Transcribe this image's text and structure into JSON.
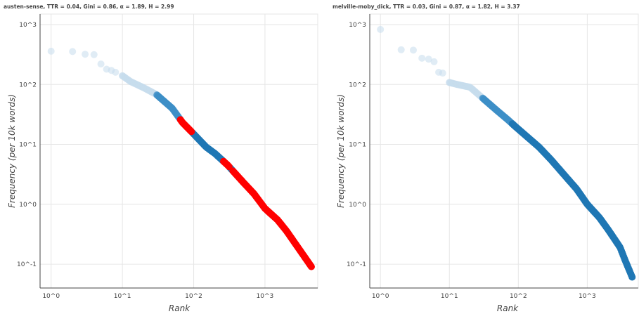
{
  "chart_data": [
    {
      "type": "scatter",
      "title": "austen-sense, TTR = 0.04, Gini = 0.86, α = 1.89, Η = 2.99",
      "xlabel": "Rank",
      "ylabel": "Frequency (per 10k words)",
      "x_scale": "log",
      "y_scale": "log",
      "xlim": [
        0.7,
        5500
      ],
      "ylim": [
        0.04,
        1500
      ],
      "xticks": [
        "10^0",
        "10^1",
        "10^2",
        "10^3"
      ],
      "yticks": [
        "10^-1",
        "10^0",
        "10^1",
        "10^2",
        "10^3"
      ],
      "grid": true,
      "colors": {
        "low_rank": "#c6dcec",
        "mid_rank": "#3d8fc7",
        "high_rank": "#1f77b4",
        "highlight": "#ff0000"
      },
      "curve": [
        [
          1,
          360
        ],
        [
          2,
          355
        ],
        [
          3,
          320
        ],
        [
          4,
          315
        ],
        [
          5,
          220
        ],
        [
          6,
          180
        ],
        [
          7,
          172
        ],
        [
          8,
          160
        ],
        [
          10,
          140
        ],
        [
          13,
          112
        ],
        [
          20,
          88
        ],
        [
          30,
          68
        ],
        [
          50,
          40
        ],
        [
          70,
          23
        ],
        [
          90,
          17
        ],
        [
          150,
          9
        ],
        [
          200,
          7
        ],
        [
          300,
          4.5
        ],
        [
          500,
          2.3
        ],
        [
          700,
          1.5
        ],
        [
          1000,
          0.85
        ],
        [
          1500,
          0.55
        ],
        [
          2000,
          0.36
        ],
        [
          3000,
          0.18
        ],
        [
          4500,
          0.09
        ]
      ],
      "highlight_ranges": [
        [
          65,
          95
        ],
        [
          260,
          320
        ],
        [
          350,
          4500
        ]
      ]
    },
    {
      "type": "scatter",
      "title": "melville-moby_dick, TTR = 0.03, Gini = 0.87, α = 1.82, Η = 3.37",
      "xlabel": "Rank",
      "ylabel": "Frequency (per 10k words)",
      "x_scale": "log",
      "y_scale": "log",
      "xlim": [
        0.7,
        5500
      ],
      "ylim": [
        0.04,
        1500
      ],
      "xticks": [
        "10^0",
        "10^1",
        "10^2",
        "10^3"
      ],
      "yticks": [
        "10^-1",
        "10^0",
        "10^1",
        "10^2",
        "10^3"
      ],
      "grid": true,
      "colors": {
        "low_rank": "#c6dcec",
        "mid_rank": "#3d8fc7",
        "high_rank": "#1f77b4"
      },
      "curve": [
        [
          1,
          830
        ],
        [
          2,
          380
        ],
        [
          3,
          375
        ],
        [
          4,
          275
        ],
        [
          5,
          265
        ],
        [
          6,
          240
        ],
        [
          7,
          160
        ],
        [
          8,
          155
        ],
        [
          10,
          108
        ],
        [
          13,
          100
        ],
        [
          20,
          90
        ],
        [
          30,
          60
        ],
        [
          50,
          36
        ],
        [
          70,
          26
        ],
        [
          90,
          20
        ],
        [
          150,
          12
        ],
        [
          200,
          9
        ],
        [
          300,
          5.5
        ],
        [
          500,
          2.8
        ],
        [
          700,
          1.8
        ],
        [
          1000,
          1.0
        ],
        [
          1500,
          0.6
        ],
        [
          2000,
          0.38
        ],
        [
          2500,
          0.26
        ],
        [
          3000,
          0.19
        ],
        [
          3500,
          0.12
        ],
        [
          4500,
          0.06
        ]
      ]
    }
  ]
}
